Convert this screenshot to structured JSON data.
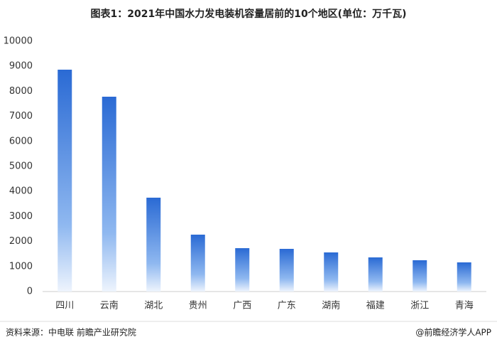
{
  "chart_data": {
    "type": "bar",
    "title": "图表1：2021年中国水力发电装机容量居前的10个地区(单位：万千瓦)",
    "categories": [
      "四川",
      "云南",
      "湖北",
      "贵州",
      "广西",
      "广东",
      "湖南",
      "福建",
      "浙江",
      "青海"
    ],
    "values": [
      8864,
      7784,
      3750,
      2273,
      1733,
      1705,
      1563,
      1364,
      1250,
      1165
    ],
    "color": "#2f6fd6",
    "ylim": [
      0,
      10000
    ],
    "yticks": [
      0,
      1000,
      2000,
      3000,
      4000,
      5000,
      6000,
      7000,
      8000,
      9000,
      10000
    ],
    "grid": false,
    "source": "资料来源：中电联 前瞻产业研究院",
    "credit": "@前瞻经济学人APP"
  }
}
